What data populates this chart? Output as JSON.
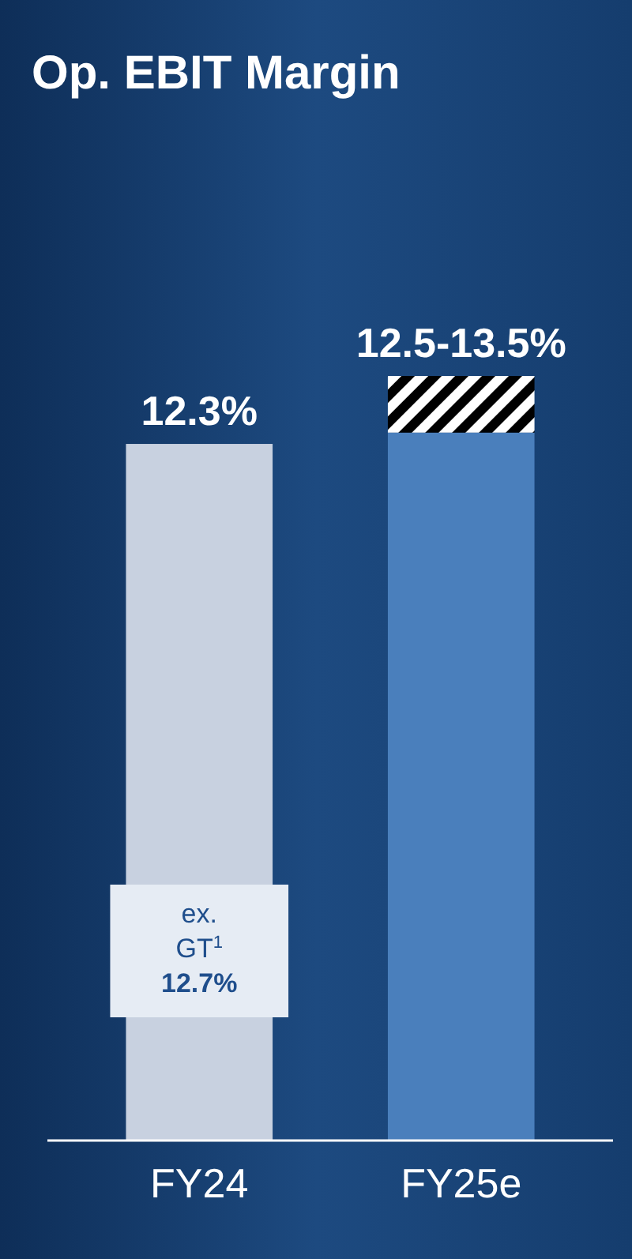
{
  "chart_data": {
    "type": "bar",
    "title": "Op. EBIT Margin",
    "stacked": true,
    "categories": [
      "FY24",
      "FY25e"
    ],
    "series": [
      {
        "colors": [
          "#c8d1e0",
          "#4a7fbc"
        ],
        "values": [
          12.3,
          12.5
        ],
        "value_labels": [
          "12.3%",
          null
        ]
      },
      {
        "color": "#000000",
        "values": [
          null,
          1.0
        ]
      }
    ],
    "annotations": [
      {
        "text": "12.5-13.5%",
        "x": "FY25e",
        "y": 13.5
      },
      "ex. GT$^{1}$",
      "12.7%"
    ]
  }
}
